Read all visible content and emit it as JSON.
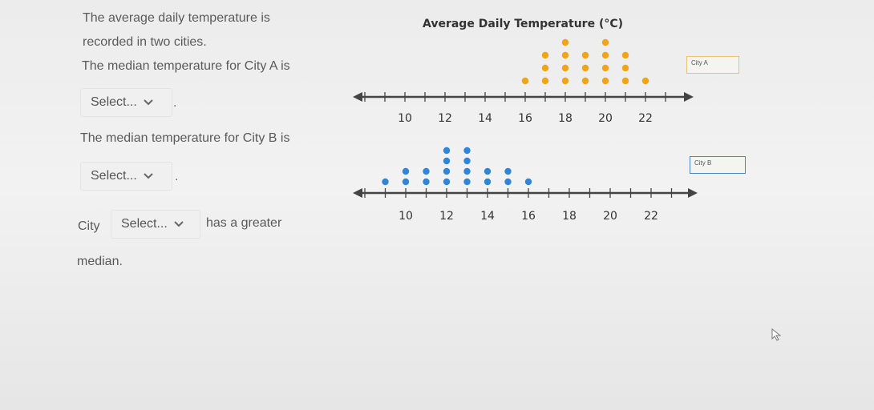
{
  "question": {
    "line1": "The average daily temperature is",
    "line2": "recorded in two cities.",
    "line3": "The median temperature for City A is",
    "select_a": "Select...",
    "line4": "The median temperature for City B is",
    "select_b": "Select...",
    "city_prefix": "City",
    "select_city": "Select...",
    "city_suffix": "has a greater",
    "line_last": "median."
  },
  "chart": {
    "title": "Average Daily Temperature (°C)",
    "legend_a": "City A",
    "legend_b": "City B",
    "tick_labels": [
      "10",
      "12",
      "14",
      "16",
      "18",
      "20",
      "22"
    ],
    "color_a": "#f0a418",
    "color_b": "#2f86d8"
  },
  "chart_data": {
    "type": "scatter",
    "title": "Average Daily Temperature (°C)",
    "xlim": [
      9,
      23
    ],
    "ticks": [
      10,
      12,
      14,
      16,
      18,
      20,
      22
    ],
    "series": [
      {
        "name": "City A",
        "points": [
          {
            "x": 16,
            "count": 1
          },
          {
            "x": 17,
            "count": 3
          },
          {
            "x": 18,
            "count": 4
          },
          {
            "x": 19,
            "count": 3
          },
          {
            "x": 20,
            "count": 4
          },
          {
            "x": 21,
            "count": 3
          },
          {
            "x": 22,
            "count": 1
          }
        ]
      },
      {
        "name": "City B",
        "points": [
          {
            "x": 9,
            "count": 1
          },
          {
            "x": 10,
            "count": 2
          },
          {
            "x": 11,
            "count": 2
          },
          {
            "x": 12,
            "count": 4
          },
          {
            "x": 13,
            "count": 4
          },
          {
            "x": 14,
            "count": 2
          },
          {
            "x": 15,
            "count": 2
          },
          {
            "x": 16,
            "count": 1
          }
        ]
      }
    ]
  }
}
